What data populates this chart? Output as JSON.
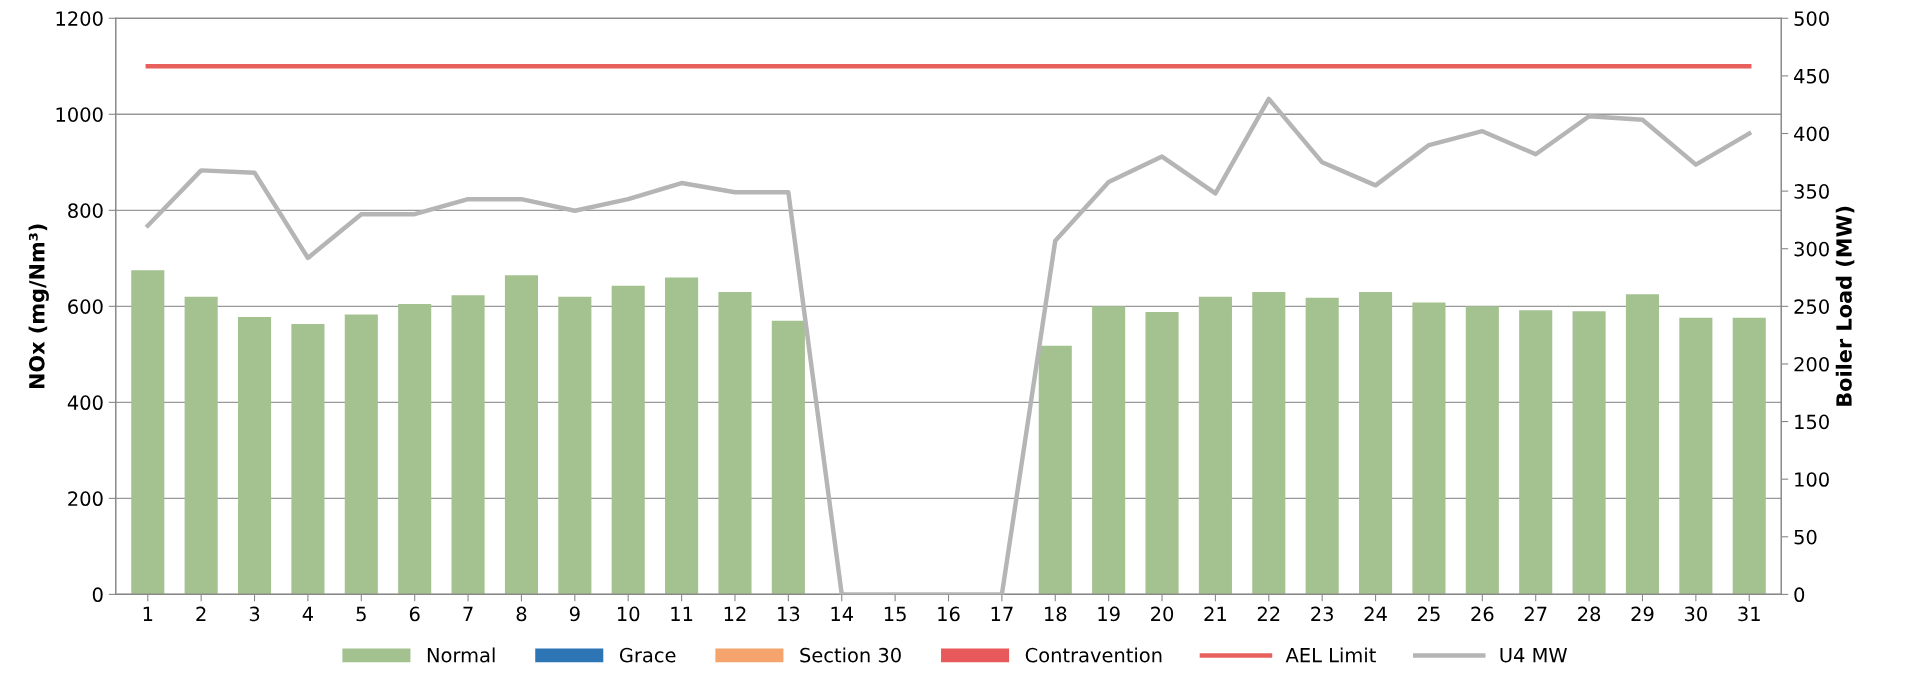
{
  "chart_data": {
    "type": "bar",
    "ylabel": "NOx (mg/Nm³)",
    "y2label": "Boiler Load (MW)",
    "categories": [
      "1",
      "2",
      "3",
      "4",
      "5",
      "6",
      "7",
      "8",
      "9",
      "10",
      "11",
      "12",
      "13",
      "14",
      "15",
      "16",
      "17",
      "18",
      "19",
      "20",
      "21",
      "22",
      "23",
      "24",
      "25",
      "26",
      "27",
      "28",
      "29",
      "30",
      "31"
    ],
    "series": [
      {
        "name": "Normal",
        "color": "#a3c28f",
        "values": [
          675,
          620,
          578,
          563,
          583,
          605,
          623,
          665,
          620,
          643,
          660,
          630,
          570,
          null,
          null,
          null,
          null,
          518,
          600,
          588,
          620,
          630,
          618,
          630,
          608,
          600,
          592,
          590,
          625,
          576,
          576
        ]
      },
      {
        "name": "Grace",
        "color": "#2e75b6",
        "values": [
          null,
          null,
          null,
          null,
          null,
          null,
          null,
          null,
          null,
          null,
          null,
          null,
          null,
          null,
          null,
          null,
          null,
          null,
          null,
          null,
          null,
          null,
          null,
          null,
          null,
          null,
          null,
          null,
          null,
          null,
          null
        ]
      },
      {
        "name": "Section 30",
        "color": "#f4a46c",
        "values": [
          null,
          null,
          null,
          null,
          null,
          null,
          null,
          null,
          null,
          null,
          null,
          null,
          null,
          null,
          null,
          null,
          null,
          null,
          null,
          null,
          null,
          null,
          null,
          null,
          null,
          null,
          null,
          null,
          null,
          null,
          null
        ]
      },
      {
        "name": "Contravention",
        "color": "#e8595c",
        "values": [
          null,
          null,
          null,
          null,
          null,
          null,
          null,
          null,
          null,
          null,
          null,
          null,
          null,
          null,
          null,
          null,
          null,
          null,
          null,
          null,
          null,
          null,
          null,
          null,
          null,
          null,
          null,
          null,
          null,
          null,
          null
        ]
      },
      {
        "name": "AEL Limit",
        "type": "line",
        "color": "#e8605c",
        "values": [
          1100,
          1100,
          1100,
          1100,
          1100,
          1100,
          1100,
          1100,
          1100,
          1100,
          1100,
          1100,
          1100,
          1100,
          1100,
          1100,
          1100,
          1100,
          1100,
          1100,
          1100,
          1100,
          1100,
          1100,
          1100,
          1100,
          1100,
          1100,
          1100,
          1100,
          1100
        ]
      },
      {
        "name": "U4 MW",
        "type": "line",
        "axis": "y2",
        "color": "#b5b5b5",
        "values": [
          320,
          368,
          366,
          292,
          330,
          330,
          343,
          343,
          333,
          343,
          357,
          349,
          349,
          0,
          0,
          0,
          0,
          307,
          358,
          380,
          348,
          430,
          375,
          355,
          390,
          402,
          382,
          415,
          412,
          373,
          400
        ]
      }
    ],
    "ylim": [
      0,
      1200
    ],
    "yticks": [
      0,
      200,
      400,
      600,
      800,
      1000,
      1200
    ],
    "y2lim": [
      0,
      500
    ],
    "y2ticks": [
      0,
      50,
      100,
      150,
      200,
      250,
      300,
      350,
      400,
      450,
      500
    ],
    "grid": "y",
    "legend": "bottom",
    "line_style": "solid"
  }
}
